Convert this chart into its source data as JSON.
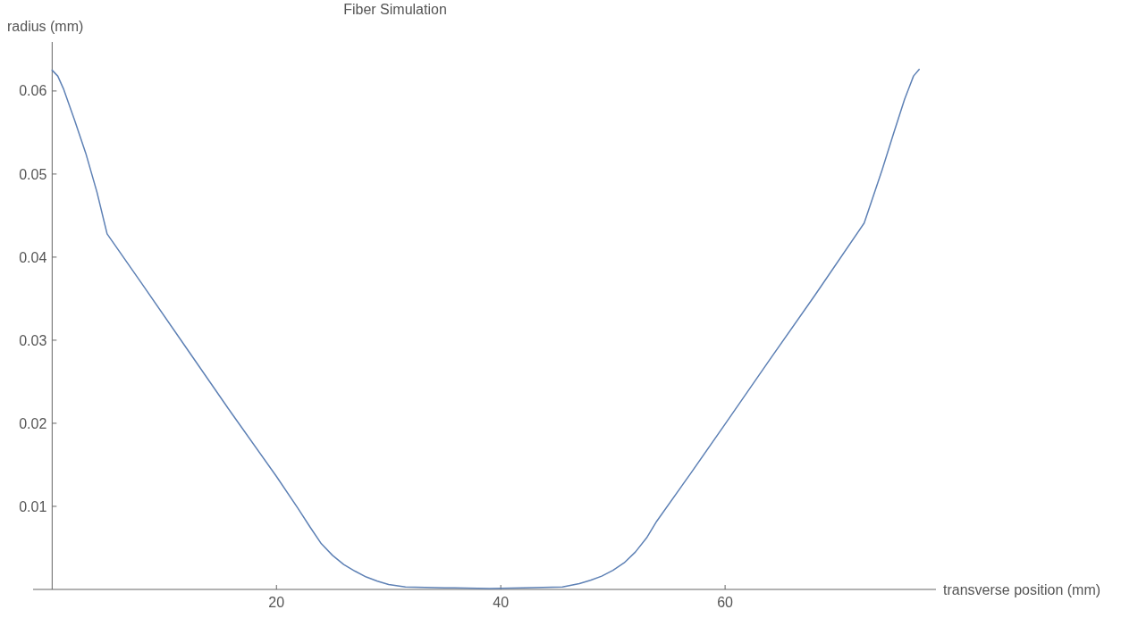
{
  "chart_data": {
    "type": "line",
    "title": "Fiber Simulation",
    "xlabel": "transverse position (mm)",
    "ylabel": "radius (mm)",
    "xlim": [
      -1.7,
      78.8
    ],
    "ylim": [
      0,
      0.0659
    ],
    "xticks": [
      20,
      40,
      60
    ],
    "yticks": [
      0.01,
      0.02,
      0.03,
      0.04,
      0.05,
      0.06
    ],
    "marker": "none",
    "line_style": "solid",
    "series": [
      {
        "color": "#5e81b5",
        "x": [
          0,
          0.5,
          1,
          2,
          3,
          4,
          4.9,
          8,
          12,
          16,
          20,
          21.9,
          23,
          24,
          25,
          26,
          27,
          28,
          29,
          30,
          31.5,
          35,
          39,
          42,
          45.5,
          47,
          48,
          49,
          50,
          51,
          52,
          53,
          53.9,
          57,
          60,
          64,
          68,
          72.4,
          73,
          74,
          75,
          76,
          76.8,
          77.3
        ],
        "values": [
          0.0625,
          0.0618,
          0.0603,
          0.0565,
          0.0525,
          0.0478,
          0.0428,
          0.0368,
          0.029,
          0.0212,
          0.0136,
          0.0098,
          0.0075,
          0.0055,
          0.0041,
          0.003,
          0.0022,
          0.0015,
          0.001,
          0.0006,
          0.0003,
          0.0002,
          0.0001,
          0.0002,
          0.0003,
          0.0007,
          0.0011,
          0.0016,
          0.0023,
          0.0032,
          0.0045,
          0.0062,
          0.0082,
          0.0141,
          0.0199,
          0.0277,
          0.0354,
          0.0441,
          0.0465,
          0.0505,
          0.0548,
          0.059,
          0.0618,
          0.0626
        ]
      }
    ]
  }
}
